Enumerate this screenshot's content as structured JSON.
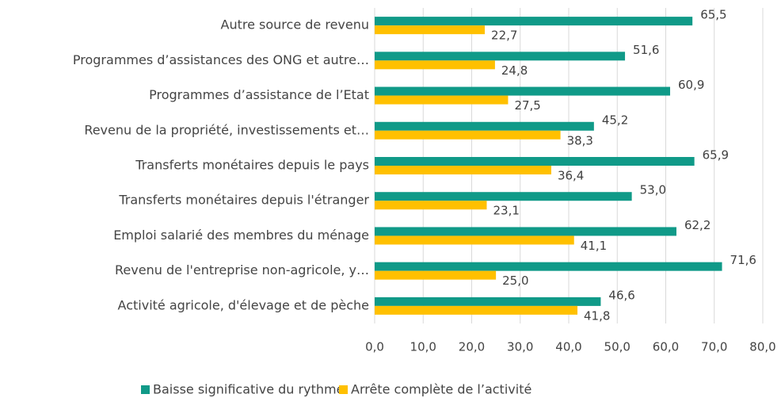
{
  "chart_data": {
    "type": "hbar",
    "categories": [
      "Autre source de revenu",
      "Programmes d’assistances des ONG et autre…",
      "Programmes d’assistance de l’Etat",
      "Revenu de la propriété, investissements et…",
      "Transferts monétaires depuis le pays",
      "Transferts monétaires depuis l'étranger",
      "Emploi salarié des membres du ménage",
      "Revenu de l'entreprise non-agricole, y…",
      "Activité agricole, d'élevage et de pèche"
    ],
    "series": [
      {
        "name": "Baisse significative du rythme",
        "color": "#109a88",
        "values": [
          65.5,
          51.6,
          60.9,
          45.2,
          65.9,
          53.0,
          62.2,
          71.6,
          46.6
        ],
        "value_labels": [
          "65,5",
          "51,6",
          "60,9",
          "45,2",
          "65,9",
          "53,0",
          "62,2",
          "71,6",
          "46,6"
        ]
      },
      {
        "name": "Arrête complète de l’activité",
        "color": "#ffc000",
        "values": [
          22.7,
          24.8,
          27.5,
          38.3,
          36.4,
          23.1,
          41.1,
          25.0,
          41.8
        ],
        "value_labels": [
          "22,7",
          "24,8",
          "27,5",
          "38,3",
          "36,4",
          "23,1",
          "41,1",
          "25,0",
          "41,8"
        ]
      }
    ],
    "xlim": [
      0,
      80
    ],
    "xticks": [
      {
        "value": 0,
        "label": "0,0"
      },
      {
        "value": 10,
        "label": "10,0"
      },
      {
        "value": 20,
        "label": "20,0"
      },
      {
        "value": 30,
        "label": "30,0"
      },
      {
        "value": 40,
        "label": "40,0"
      },
      {
        "value": 50,
        "label": "50,0"
      },
      {
        "value": 60,
        "label": "60,0"
      },
      {
        "value": 70,
        "label": "70,0"
      },
      {
        "value": 80,
        "label": "80,0"
      }
    ],
    "grid": true,
    "legend": "bottom"
  }
}
